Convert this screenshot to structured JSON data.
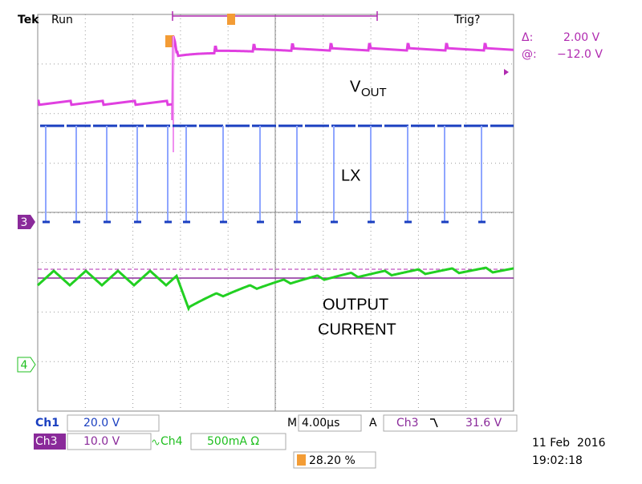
{
  "header": {
    "brand": "Tek",
    "status": "Run",
    "trigger_status": "Trig?"
  },
  "cursor": {
    "delta_label": "Δ:",
    "delta": "2.00 V",
    "at_label": "@:",
    "at": "−12.0 V"
  },
  "annotations": {
    "vout_main": "V",
    "vout_sub": "OUT",
    "lx": "LX",
    "current_line1": "OUTPUT",
    "current_line2": "CURRENT"
  },
  "markers": {
    "ch3": "3",
    "ch4": "4"
  },
  "settings": {
    "ch1_label": "Ch1",
    "ch1_scale": "20.0 V",
    "ch3_label": "Ch3",
    "ch3_scale": "10.0 V",
    "ch4_label": "Ch4",
    "ch4_scale": "500mA Ω",
    "time_label": "M",
    "time_scale": "4.00µs",
    "trigger_label": "A",
    "trigger_source": "Ch3",
    "trigger_level": "31.6 V",
    "trigger_position": "28.20 %"
  },
  "timestamp": {
    "date": "11 Feb  2016",
    "time": "19:02:18"
  }
}
